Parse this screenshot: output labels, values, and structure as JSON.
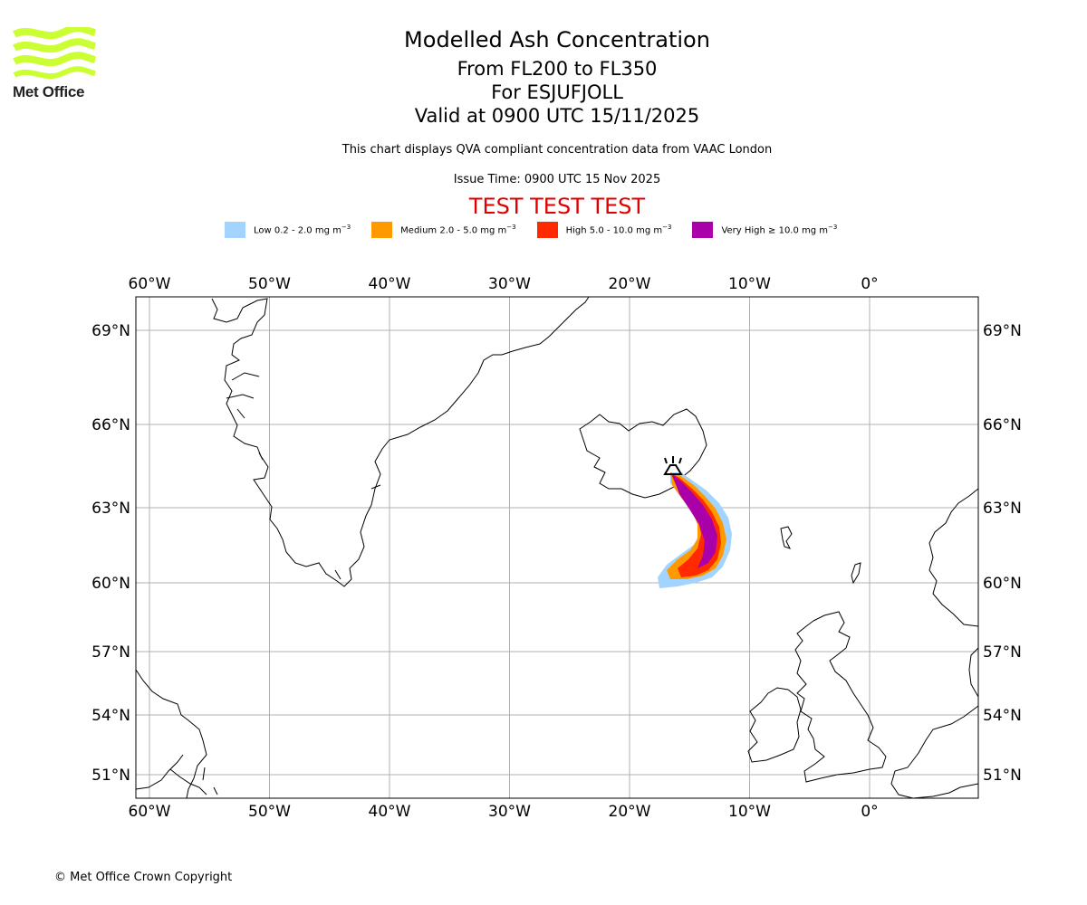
{
  "header": {
    "title": "Modelled Ash Concentration",
    "levels": "From FL200 to FL350",
    "volcano": "For ESJUFJOLL",
    "valid": "Valid at 0900 UTC 15/11/2025",
    "description": "This chart displays QVA compliant concentration data from VAAC London",
    "issue": "Issue Time: 0900 UTC 15 Nov 2025",
    "test_banner": "TEST TEST TEST"
  },
  "logo": {
    "text": "Met Office",
    "color": "#ccff33"
  },
  "legend": [
    {
      "label": "Low 0.2 - 2.0 mg m",
      "unit_sup": "−3",
      "color": "#a3d3ff"
    },
    {
      "label": "Medium 2.0 - 5.0 mg m",
      "unit_sup": "−3",
      "color": "#ff9900"
    },
    {
      "label": "High 5.0 - 10.0 mg m",
      "unit_sup": "−3",
      "color": "#ff2a00"
    },
    {
      "label": "Very High  ≥  10.0 mg m",
      "unit_sup": "−3",
      "color": "#aa00aa"
    }
  ],
  "map": {
    "lon_ticks": [
      "60°W",
      "50°W",
      "40°W",
      "30°W",
      "20°W",
      "10°W",
      "0°"
    ],
    "lon_values": [
      -60,
      -50,
      -40,
      -30,
      -20,
      -10,
      0
    ],
    "lat_ticks": [
      "69°N",
      "66°N",
      "63°N",
      "60°N",
      "57°N",
      "54°N",
      "51°N"
    ],
    "lat_values": [
      69,
      66,
      63,
      60,
      57,
      54,
      51
    ],
    "grid_color": "#b0b0b0",
    "volcano_name": "ESJUFJOLL"
  },
  "footer": {
    "copyright": "© Met Office Crown Copyright"
  }
}
